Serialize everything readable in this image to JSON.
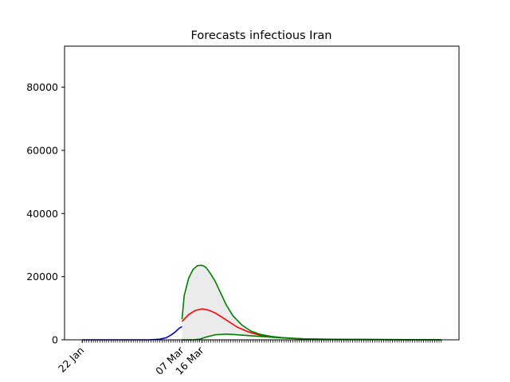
{
  "chart_data": {
    "type": "line",
    "title": "Forecasts infectious Iran",
    "xlabel": "",
    "ylabel": "",
    "x_tick_labels": [
      {
        "label": "22 Jan",
        "day": 0
      },
      {
        "label": "07 Mar",
        "day": 45
      },
      {
        "label": "16 Mar",
        "day": 54
      }
    ],
    "xlim": [
      -8,
      170
    ],
    "ylim": [
      0,
      93000
    ],
    "yticks": [
      0,
      20000,
      40000,
      60000,
      80000
    ],
    "grid": false,
    "legend": "none",
    "series": [
      {
        "color": "#0000cc",
        "x": [
          0,
          30,
          35,
          38,
          40,
          42,
          43,
          44,
          45
        ],
        "y": [
          0,
          0,
          200,
          700,
          1500,
          2500,
          3200,
          3800,
          4200
        ]
      },
      {
        "color": "#ff0000",
        "x": [
          45,
          48,
          51,
          54,
          57,
          60,
          63,
          66,
          70,
          75,
          80,
          90,
          100,
          120,
          150,
          162
        ],
        "y": [
          5800,
          8000,
          9300,
          9800,
          9400,
          8500,
          7200,
          5800,
          4000,
          2500,
          1500,
          600,
          300,
          100,
          50,
          50
        ]
      },
      {
        "color": "#008000",
        "x": [
          45,
          46,
          48,
          50,
          52,
          54,
          55,
          56,
          58,
          60,
          62,
          65,
          68,
          72,
          76,
          80,
          85,
          90,
          100,
          110,
          120,
          150,
          162
        ],
        "y": [
          6500,
          14000,
          19500,
          22300,
          23500,
          23600,
          23300,
          22800,
          20800,
          18500,
          15500,
          11000,
          7600,
          4700,
          2800,
          1800,
          1100,
          700,
          300,
          150,
          100,
          50,
          50
        ]
      },
      {
        "color": "#008000",
        "x": [
          45,
          46,
          47,
          48,
          50,
          53,
          56,
          60,
          65,
          70,
          80,
          90,
          100,
          120,
          150,
          162
        ],
        "y": [
          0,
          0,
          0,
          0,
          0,
          200,
          900,
          1600,
          1800,
          1600,
          1100,
          600,
          300,
          100,
          50,
          50
        ]
      }
    ]
  }
}
